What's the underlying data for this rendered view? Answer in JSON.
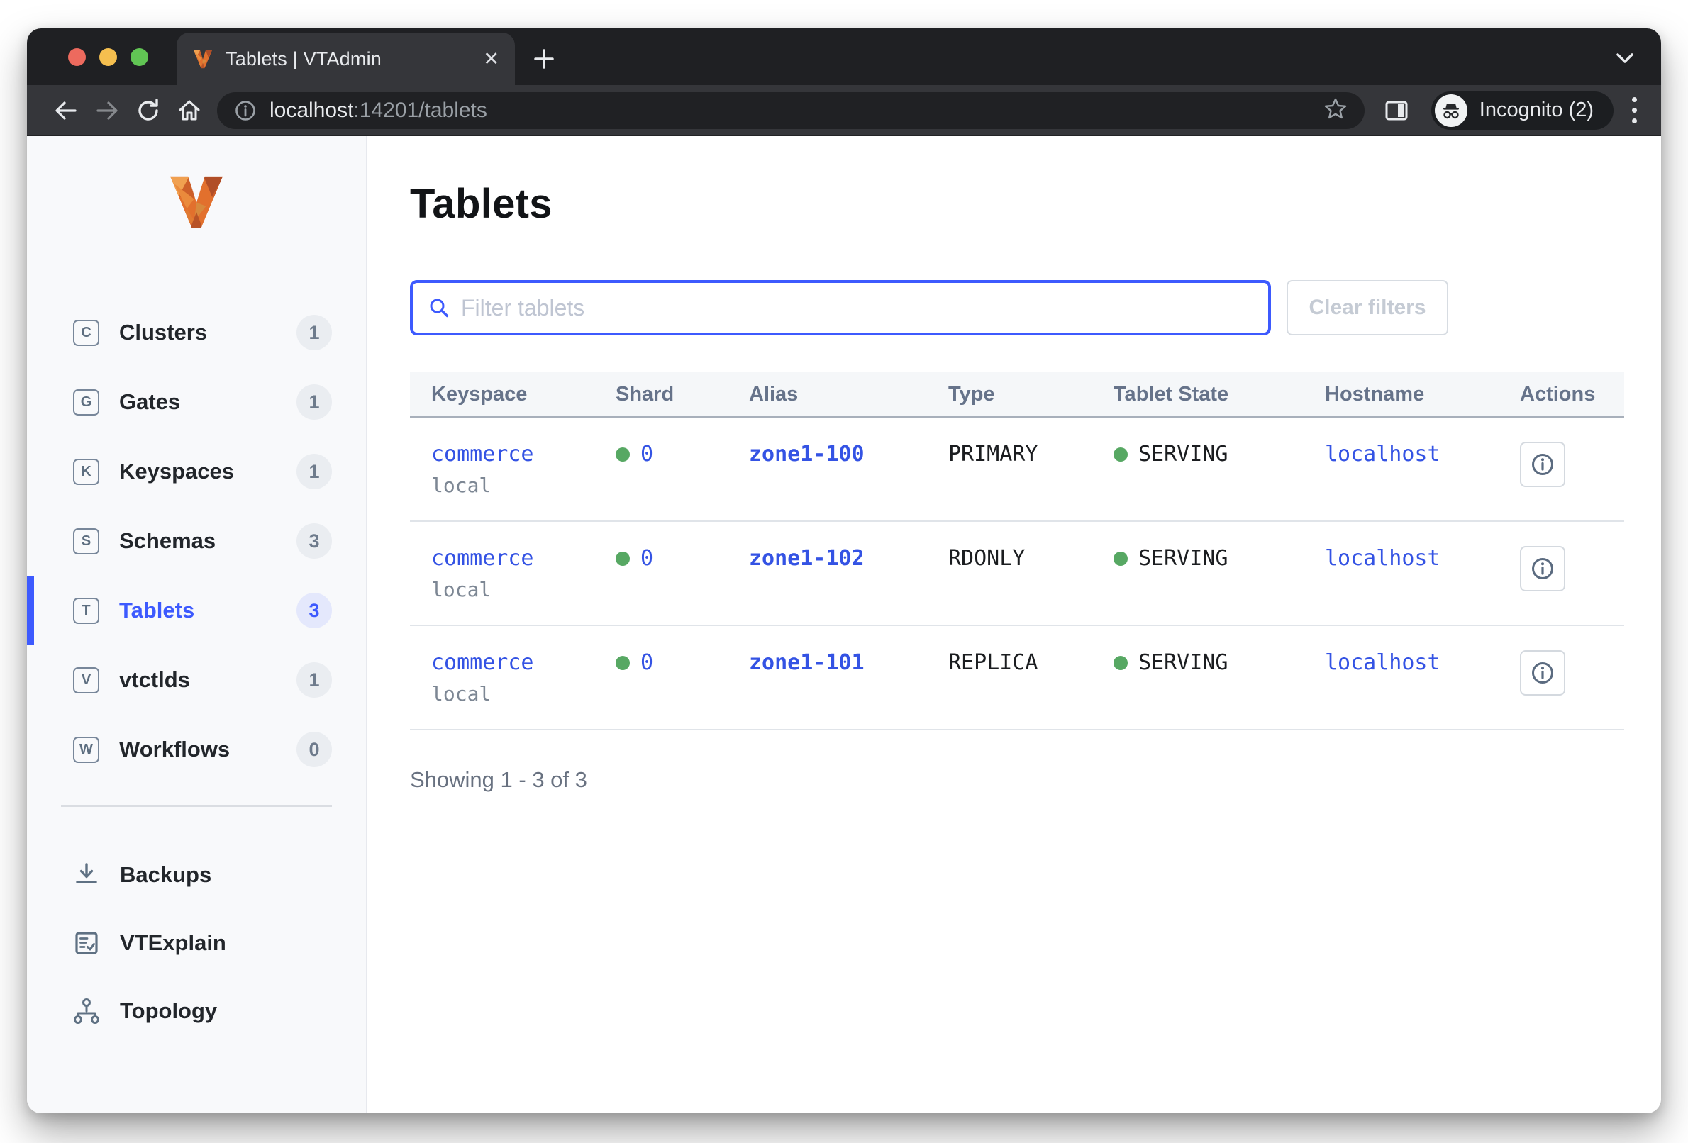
{
  "browser": {
    "tab_title": "Tablets | VTAdmin",
    "close_glyph": "✕",
    "url_host": "localhost",
    "url_rest": ":14201/tablets",
    "incognito_label": "Incognito (2)"
  },
  "colors": {
    "accent": "#3d5afe",
    "link": "#3453e4",
    "green": "#57a863",
    "traffic_red": "#ed6a5e",
    "traffic_yellow": "#f5bf4f",
    "traffic_green": "#61c554"
  },
  "sidebar": {
    "items": [
      {
        "letter": "C",
        "label": "Clusters",
        "count": "1",
        "active": false
      },
      {
        "letter": "G",
        "label": "Gates",
        "count": "1",
        "active": false
      },
      {
        "letter": "K",
        "label": "Keyspaces",
        "count": "1",
        "active": false
      },
      {
        "letter": "S",
        "label": "Schemas",
        "count": "3",
        "active": false
      },
      {
        "letter": "T",
        "label": "Tablets",
        "count": "3",
        "active": true
      },
      {
        "letter": "V",
        "label": "vtctlds",
        "count": "1",
        "active": false
      },
      {
        "letter": "W",
        "label": "Workflows",
        "count": "0",
        "active": false
      }
    ],
    "secondary": [
      {
        "label": "Backups"
      },
      {
        "label": "VTExplain"
      },
      {
        "label": "Topology"
      }
    ]
  },
  "main": {
    "title": "Tablets",
    "filter_placeholder": "Filter tablets",
    "filter_value": "",
    "clear_filters_label": "Clear filters",
    "table": {
      "columns": [
        "Keyspace",
        "Shard",
        "Alias",
        "Type",
        "Tablet State",
        "Hostname",
        "Actions"
      ],
      "rows": [
        {
          "keyspace": "commerce",
          "cluster": "local",
          "shard": "0",
          "alias": "zone1-100",
          "type": "PRIMARY",
          "state": "SERVING",
          "hostname": "localhost"
        },
        {
          "keyspace": "commerce",
          "cluster": "local",
          "shard": "0",
          "alias": "zone1-102",
          "type": "RDONLY",
          "state": "SERVING",
          "hostname": "localhost"
        },
        {
          "keyspace": "commerce",
          "cluster": "local",
          "shard": "0",
          "alias": "zone1-101",
          "type": "REPLICA",
          "state": "SERVING",
          "hostname": "localhost"
        }
      ]
    },
    "showing_text": "Showing 1 - 3 of 3"
  }
}
